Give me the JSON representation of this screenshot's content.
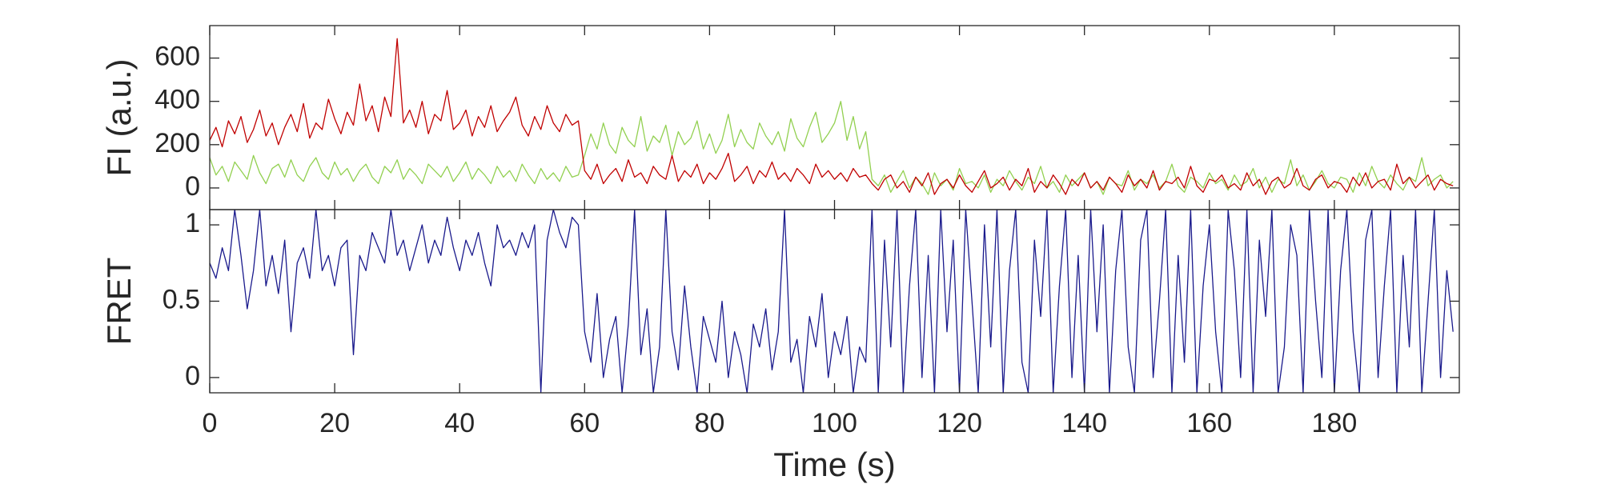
{
  "chart_data": [
    {
      "type": "line",
      "ylabel": "FI (a.u.)",
      "x": [
        0,
        1,
        2,
        3,
        4,
        5,
        6,
        7,
        8,
        9,
        10,
        11,
        12,
        13,
        14,
        15,
        16,
        17,
        18,
        19,
        20,
        21,
        22,
        23,
        24,
        25,
        26,
        27,
        28,
        29,
        30,
        31,
        32,
        33,
        34,
        35,
        36,
        37,
        38,
        39,
        40,
        41,
        42,
        43,
        44,
        45,
        46,
        47,
        48,
        49,
        50,
        51,
        52,
        53,
        54,
        55,
        56,
        57,
        58,
        59,
        60,
        61,
        62,
        63,
        64,
        65,
        66,
        67,
        68,
        69,
        70,
        71,
        72,
        73,
        74,
        75,
        76,
        77,
        78,
        79,
        80,
        81,
        82,
        83,
        84,
        85,
        86,
        87,
        88,
        89,
        90,
        91,
        92,
        93,
        94,
        95,
        96,
        97,
        98,
        99,
        100,
        101,
        102,
        103,
        104,
        105,
        106,
        107,
        108,
        109,
        110,
        111,
        112,
        113,
        114,
        115,
        116,
        117,
        118,
        119,
        120,
        121,
        122,
        123,
        124,
        125,
        126,
        127,
        128,
        129,
        130,
        131,
        132,
        133,
        134,
        135,
        136,
        137,
        138,
        139,
        140,
        141,
        142,
        143,
        144,
        145,
        146,
        147,
        148,
        149,
        150,
        151,
        152,
        153,
        154,
        155,
        156,
        157,
        158,
        159,
        160,
        161,
        162,
        163,
        164,
        165,
        166,
        167,
        168,
        169,
        170,
        171,
        172,
        173,
        174,
        175,
        176,
        177,
        178,
        179,
        180,
        181,
        182,
        183,
        184,
        185,
        186,
        187,
        188,
        189,
        190,
        191,
        192,
        193,
        194,
        195,
        196,
        197,
        198,
        199
      ],
      "series": [
        {
          "color": "#92d050",
          "values": [
            140,
            60,
            100,
            30,
            120,
            80,
            40,
            150,
            70,
            20,
            90,
            110,
            50,
            130,
            60,
            30,
            100,
            140,
            70,
            40,
            120,
            60,
            90,
            30,
            80,
            110,
            50,
            20,
            100,
            70,
            130,
            40,
            90,
            60,
            20,
            110,
            80,
            50,
            100,
            30,
            70,
            120,
            40,
            90,
            60,
            20,
            100,
            50,
            80,
            30,
            110,
            60,
            20,
            90,
            40,
            70,
            30,
            100,
            50,
            60,
            150,
            250,
            180,
            300,
            200,
            160,
            280,
            220,
            190,
            330,
            170,
            240,
            210,
            290,
            150,
            260,
            200,
            230,
            310,
            180,
            250,
            160,
            220,
            340,
            190,
            270,
            210,
            180,
            300,
            240,
            200,
            260,
            170,
            320,
            230,
            190,
            280,
            350,
            210,
            250,
            300,
            400,
            220,
            330,
            180,
            260,
            40,
            10,
            60,
            -20,
            30,
            80,
            0,
            50,
            20,
            -30,
            70,
            10,
            40,
            -10,
            90,
            20,
            30,
            0,
            60,
            -20,
            40,
            10,
            80,
            30,
            -10,
            50,
            20,
            100,
            0,
            30,
            -20,
            60,
            10,
            40,
            70,
            0,
            30,
            -30,
            50,
            20,
            10,
            80,
            -10,
            40,
            20,
            60,
            0,
            30,
            110,
            10,
            -20,
            50,
            30,
            0,
            70,
            20,
            40,
            -10,
            60,
            10,
            30,
            90,
            0,
            50,
            -20,
            40,
            20,
            130,
            10,
            60,
            -10,
            30,
            80,
            20,
            0,
            50,
            40,
            -20,
            70,
            10,
            100,
            30,
            0,
            60,
            20,
            -10,
            50,
            30,
            140,
            10,
            40,
            60,
            0,
            30
          ]
        },
        {
          "color": "#c00000",
          "values": [
            220,
            280,
            190,
            310,
            250,
            330,
            210,
            270,
            360,
            240,
            300,
            200,
            280,
            340,
            260,
            390,
            230,
            300,
            270,
            410,
            320,
            250,
            350,
            290,
            480,
            310,
            380,
            260,
            420,
            330,
            690,
            300,
            360,
            280,
            400,
            250,
            340,
            310,
            450,
            270,
            300,
            360,
            240,
            330,
            280,
            380,
            260,
            310,
            350,
            420,
            290,
            240,
            330,
            270,
            380,
            300,
            260,
            340,
            290,
            310,
            80,
            40,
            110,
            20,
            60,
            90,
            30,
            130,
            50,
            70,
            20,
            100,
            60,
            40,
            150,
            30,
            80,
            50,
            110,
            20,
            70,
            40,
            90,
            160,
            30,
            60,
            100,
            20,
            80,
            50,
            120,
            40,
            70,
            30,
            90,
            60,
            20,
            110,
            50,
            80,
            40,
            70,
            30,
            90,
            50,
            60,
            20,
            -10,
            40,
            60,
            0,
            30,
            -20,
            50,
            10,
            70,
            -30,
            20,
            40,
            0,
            60,
            10,
            -20,
            30,
            80,
            0,
            20,
            50,
            -10,
            40,
            10,
            90,
            -20,
            30,
            0,
            60,
            20,
            -30,
            40,
            10,
            70,
            0,
            30,
            -10,
            50,
            20,
            -20,
            60,
            10,
            40,
            0,
            80,
            -10,
            30,
            20,
            50,
            0,
            100,
            10,
            -20,
            40,
            30,
            60,
            0,
            20,
            -10,
            70,
            10,
            40,
            -30,
            30,
            50,
            0,
            20,
            90,
            10,
            -10,
            40,
            60,
            0,
            30,
            20,
            -20,
            50,
            10,
            70,
            0,
            30,
            40,
            -10,
            110,
            20,
            50,
            0,
            30,
            60,
            -10,
            40,
            20,
            10
          ]
        }
      ],
      "xlim": [
        0,
        200
      ],
      "xticks": [
        0,
        20,
        40,
        60,
        80,
        100,
        120,
        140,
        160,
        180
      ],
      "ylim": [
        -100,
        750
      ],
      "yticks": [
        0,
        200,
        400,
        600
      ]
    },
    {
      "type": "line",
      "ylabel": "FRET",
      "xlabel": "Time (s)",
      "x": [
        0,
        1,
        2,
        3,
        4,
        5,
        6,
        7,
        8,
        9,
        10,
        11,
        12,
        13,
        14,
        15,
        16,
        17,
        18,
        19,
        20,
        21,
        22,
        23,
        24,
        25,
        26,
        27,
        28,
        29,
        30,
        31,
        32,
        33,
        34,
        35,
        36,
        37,
        38,
        39,
        40,
        41,
        42,
        43,
        44,
        45,
        46,
        47,
        48,
        49,
        50,
        51,
        52,
        53,
        54,
        55,
        56,
        57,
        58,
        59,
        60,
        61,
        62,
        63,
        64,
        65,
        66,
        67,
        68,
        69,
        70,
        71,
        72,
        73,
        74,
        75,
        76,
        77,
        78,
        79,
        80,
        81,
        82,
        83,
        84,
        85,
        86,
        87,
        88,
        89,
        90,
        91,
        92,
        93,
        94,
        95,
        96,
        97,
        98,
        99,
        100,
        101,
        102,
        103,
        104,
        105,
        106,
        107,
        108,
        109,
        110,
        111,
        112,
        113,
        114,
        115,
        116,
        117,
        118,
        119,
        120,
        121,
        122,
        123,
        124,
        125,
        126,
        127,
        128,
        129,
        130,
        131,
        132,
        133,
        134,
        135,
        136,
        137,
        138,
        139,
        140,
        141,
        142,
        143,
        144,
        145,
        146,
        147,
        148,
        149,
        150,
        151,
        152,
        153,
        154,
        155,
        156,
        157,
        158,
        159,
        160,
        161,
        162,
        163,
        164,
        165,
        166,
        167,
        168,
        169,
        170,
        171,
        172,
        173,
        174,
        175,
        176,
        177,
        178,
        179,
        180,
        181,
        182,
        183,
        184,
        185,
        186,
        187,
        188,
        189,
        190,
        191,
        192,
        193,
        194,
        195,
        196,
        197,
        198,
        199
      ],
      "series": [
        {
          "color": "#1a1a8c",
          "values": [
            0.75,
            0.65,
            0.85,
            0.7,
            1.1,
            0.8,
            0.45,
            0.7,
            1.1,
            0.6,
            0.8,
            0.55,
            0.9,
            0.3,
            0.75,
            0.85,
            0.65,
            1.1,
            0.7,
            0.8,
            0.6,
            0.85,
            0.9,
            0.15,
            0.8,
            0.7,
            0.95,
            0.85,
            0.75,
            1.1,
            0.8,
            0.9,
            0.7,
            0.85,
            1.0,
            0.75,
            0.9,
            0.8,
            1.05,
            0.85,
            0.7,
            0.9,
            0.8,
            0.95,
            0.75,
            0.6,
            1.0,
            0.85,
            0.9,
            0.8,
            0.95,
            0.85,
            1.0,
            -0.1,
            0.9,
            1.1,
            0.95,
            0.85,
            1.05,
            1.0,
            0.3,
            0.1,
            0.55,
            0.0,
            0.25,
            0.4,
            -0.1,
            0.35,
            1.1,
            0.15,
            0.45,
            -0.1,
            0.2,
            1.1,
            0.3,
            0.05,
            0.6,
            0.2,
            -0.1,
            0.4,
            0.25,
            0.1,
            0.5,
            0.0,
            0.3,
            0.15,
            -0.1,
            0.35,
            0.2,
            0.45,
            0.05,
            0.3,
            1.1,
            0.1,
            0.25,
            -0.1,
            0.4,
            0.2,
            0.55,
            0.0,
            0.3,
            0.15,
            0.4,
            -0.1,
            0.2,
            0.1,
            1.1,
            -0.1,
            0.9,
            0.2,
            1.1,
            -0.1,
            0.6,
            1.1,
            0.0,
            0.8,
            -0.1,
            1.1,
            0.3,
            0.9,
            -0.1,
            1.1,
            0.5,
            -0.1,
            1.0,
            0.2,
            1.1,
            -0.1,
            0.7,
            1.1,
            0.1,
            -0.1,
            0.9,
            0.4,
            1.1,
            -0.1,
            0.6,
            1.1,
            0.0,
            0.8,
            -0.1,
            1.1,
            0.3,
            1.0,
            -0.1,
            0.7,
            1.1,
            0.2,
            -0.1,
            0.9,
            1.1,
            0.0,
            0.5,
            1.1,
            -0.1,
            0.8,
            0.1,
            1.1,
            -0.1,
            0.6,
            1.0,
            0.3,
            -0.1,
            1.1,
            0.7,
            0.0,
            1.1,
            -0.1,
            0.9,
            0.4,
            1.1,
            -0.1,
            0.2,
            1.0,
            0.8,
            -0.1,
            1.1,
            0.5,
            0.0,
            1.1,
            -0.1,
            0.7,
            1.1,
            0.3,
            -0.1,
            0.9,
            1.1,
            0.0,
            0.6,
            1.1,
            -0.1,
            0.8,
            0.2,
            1.1,
            -0.1,
            0.5,
            1.1,
            0.0,
            0.7,
            0.3
          ]
        }
      ],
      "xlim": [
        0,
        200
      ],
      "xticks": [
        0,
        20,
        40,
        60,
        80,
        100,
        120,
        140,
        160,
        180
      ],
      "ylim": [
        -0.1,
        1.1
      ],
      "yticks": [
        0,
        0.5,
        1
      ]
    }
  ]
}
